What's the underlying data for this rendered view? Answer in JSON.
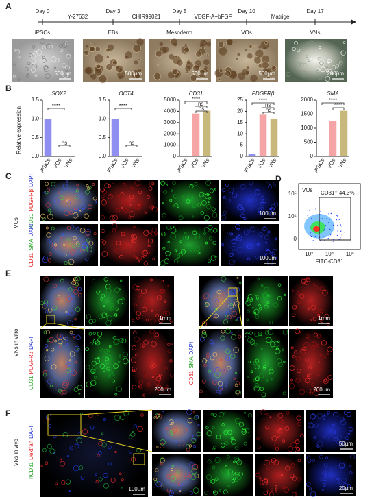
{
  "panel_labels": [
    "A",
    "B",
    "C",
    "D",
    "E",
    "F"
  ],
  "timeline": {
    "days": [
      "Day 0",
      "Day 3",
      "Day 5",
      "Day 10",
      "Day 17"
    ],
    "factors": [
      "Y-27632",
      "CHIR99021",
      "VEGF-A+bFGF",
      "Matrigel"
    ],
    "stages": [
      "iPSCs",
      "EBs",
      "Mesoderm",
      "VOs",
      "VNs"
    ],
    "scale_bars": [
      "500µm",
      "500µm",
      "500µm",
      "500µm",
      "200µm"
    ]
  },
  "y_axis_label": "Relative expression",
  "chart_data": [
    {
      "type": "bar",
      "title": "SOX2",
      "categories": [
        "iPSCs",
        "VOs",
        "VNs"
      ],
      "values": [
        1.0,
        0,
        0
      ],
      "colors": [
        "#8f8ff2",
        "#f5a5a5",
        "#c8b87c"
      ],
      "ylim": [
        0,
        1.5
      ],
      "yticks": [
        {
          "value": 0,
          "label": "0.0"
        },
        0.5,
        {
          "value": 1,
          "label": "1.0"
        },
        1.5
      ],
      "annotations": [
        "****",
        "ns"
      ]
    },
    {
      "type": "bar",
      "title": "OCT4",
      "categories": [
        "iPSCs",
        "VOs",
        "VNs"
      ],
      "values": [
        1.0,
        0,
        0
      ],
      "colors": [
        "#8f8ff2",
        "#f5a5a5",
        "#c8b87c"
      ],
      "ylim": [
        0,
        1.5
      ],
      "yticks": [
        {
          "value": 0,
          "label": "0.0"
        },
        0.5,
        {
          "value": 1,
          "label": "1.0"
        },
        1.5
      ],
      "annotations": [
        "****",
        "ns"
      ]
    },
    {
      "type": "bar",
      "title": "CD31",
      "categories": [
        "iPSCs",
        "VOs",
        "VNs"
      ],
      "values": [
        10,
        3800,
        4050
      ],
      "colors": [
        "#8f8ff2",
        "#f5a5a5",
        "#c8b87c"
      ],
      "ylim": [
        0,
        5000
      ],
      "yticks": [
        0,
        1000,
        2000,
        3000,
        4000,
        5000
      ],
      "annotations": [
        "****",
        "ns",
        "ns"
      ]
    },
    {
      "type": "bar",
      "title": "PDGFRβ",
      "categories": [
        "iPSCs",
        "VOs",
        "VNs"
      ],
      "values": [
        1,
        18.5,
        16.5
      ],
      "colors": [
        "#8f8ff2",
        "#f5a5a5",
        "#c8b87c"
      ],
      "ylim": [
        0,
        25
      ],
      "yticks": [
        0,
        5,
        10,
        15,
        20,
        25
      ],
      "annotations": [
        "****",
        "ns",
        "ns"
      ]
    },
    {
      "type": "bar",
      "title": "SMA",
      "categories": [
        "iPSCs",
        "VOs",
        "VNs"
      ],
      "values": [
        0,
        1250,
        1620
      ],
      "colors": [
        "#8f8ff2",
        "#f5a5a5",
        "#c8b87c"
      ],
      "ylim": [
        0,
        2000
      ],
      "yticks": [
        0,
        500,
        1000,
        1500,
        2000
      ],
      "annotations": [
        "****",
        "****"
      ]
    }
  ],
  "panel_c": {
    "group": "VOs",
    "rows": [
      [
        "CD31",
        "PDGFRβ",
        "DAPI"
      ],
      [
        "CD31",
        "SMA",
        "DAPI"
      ]
    ],
    "scale_bars": [
      "100µm",
      "100µm"
    ]
  },
  "panel_d": {
    "title": "VOs",
    "gate": "CD31⁺ 44.3%",
    "xlabel": "FITC-CD31",
    "xticks": [
      "10³",
      "10⁴",
      "10⁵"
    ],
    "yticks": [
      "10⁵",
      "10⁴",
      "0"
    ]
  },
  "panel_e": {
    "group": "VNs in vitro",
    "stains": [
      [
        "CD31",
        "PDGFRβ",
        "DAPI"
      ],
      [
        "CD31",
        "SMA",
        "DAPI"
      ]
    ],
    "scale_bars": [
      "1mm",
      "200µm",
      "1mm",
      "200µm"
    ]
  },
  "panel_f": {
    "group": "VNs in vivo",
    "stains": [
      "hCD31",
      "Dextran",
      "DAPI"
    ],
    "scale_bars": [
      "100µm",
      "50µm",
      "20µm"
    ]
  }
}
